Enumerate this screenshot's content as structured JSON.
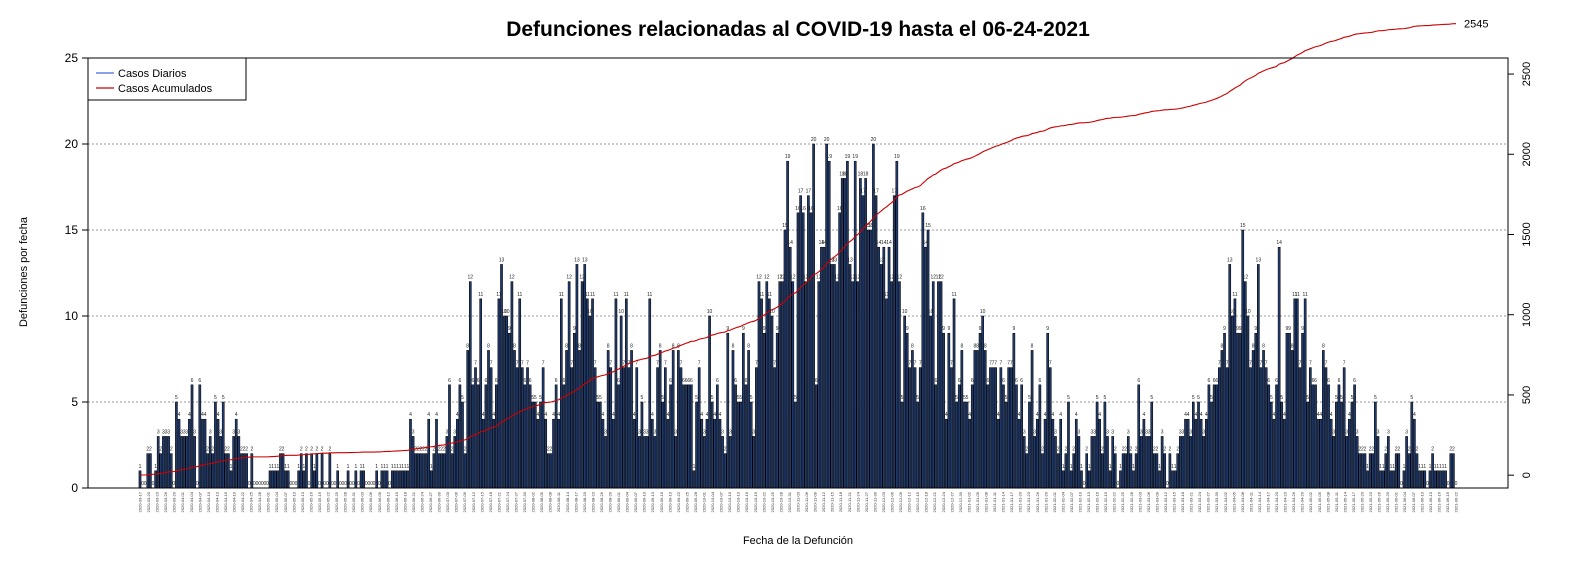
{
  "chart_data": {
    "type": "bar",
    "title": "Defunciones relacionadas al COVID-19 hasta el 06-24-2021",
    "xlabel": "Fecha de la Defunción",
    "ylabel": "Defunciones por fecha",
    "ylim": [
      0,
      25
    ],
    "y_ticks": [
      0,
      5,
      10,
      15,
      20,
      25
    ],
    "y2lim": [
      -80,
      2600
    ],
    "y2_ticks": [
      0,
      500,
      1000,
      1500,
      2000,
      2500
    ],
    "grid": "horizontal dotted",
    "legend_position": "top-left",
    "series": [
      {
        "name": "Casos Diarios",
        "color": "#4169e1",
        "bar_fill": "#20396b"
      },
      {
        "name": "Casos Acumulados",
        "color": "#cc0000"
      }
    ],
    "x_date_labels": [
      "2020-03-17",
      "2020-03-20",
      "2020-03-23",
      "2020-03-26",
      "2020-03-29",
      "2020-04-01",
      "2020-04-04",
      "2020-04-07",
      "2020-04-10",
      "2020-04-13",
      "2020-04-16",
      "2020-04-19",
      "2020-04-22",
      "2020-04-25",
      "2020-04-28",
      "2020-05-01",
      "2020-05-04",
      "2020-05-07",
      "2020-05-10",
      "2020-05-13",
      "2020-05-16",
      "2020-05-19",
      "2020-05-22",
      "2020-05-25",
      "2020-05-28",
      "2020-05-31",
      "2020-06-03",
      "2020-06-06",
      "2020-06-09",
      "2020-06-12",
      "2020-06-15",
      "2020-06-18",
      "2020-06-21",
      "2020-06-24",
      "2020-06-27",
      "2020-06-30",
      "2020-07-03",
      "2020-07-06",
      "2020-07-09",
      "2020-07-12",
      "2020-07-15",
      "2020-07-18",
      "2020-07-21",
      "2020-07-24",
      "2020-07-27",
      "2020-07-30",
      "2020-08-02",
      "2020-08-05",
      "2020-08-08",
      "2020-08-11",
      "2020-08-14",
      "2020-08-17",
      "2020-08-20",
      "2020-08-23",
      "2020-08-26",
      "2020-08-29",
      "2020-09-01",
      "2020-09-04",
      "2020-09-07",
      "2020-09-10",
      "2020-09-13",
      "2020-09-16",
      "2020-09-19",
      "2020-09-22",
      "2020-09-25",
      "2020-09-28",
      "2020-10-01",
      "2020-10-04",
      "2020-10-07",
      "2020-10-10",
      "2020-10-13",
      "2020-10-16",
      "2020-10-19",
      "2020-10-22",
      "2020-10-25",
      "2020-10-28",
      "2020-10-31",
      "2020-11-03",
      "2020-11-06",
      "2020-11-09",
      "2020-11-12",
      "2020-11-15",
      "2020-11-18",
      "2020-11-21",
      "2020-11-24",
      "2020-11-27",
      "2020-11-30",
      "2020-12-03",
      "2020-12-06",
      "2020-12-09",
      "2020-12-12",
      "2020-12-15",
      "2020-12-18",
      "2020-12-21",
      "2020-12-24",
      "2020-12-27",
      "2020-12-30",
      "2021-01-02",
      "2021-01-05",
      "2021-01-08",
      "2021-01-11",
      "2021-01-14",
      "2021-01-17",
      "2021-01-20",
      "2021-01-23",
      "2021-01-26",
      "2021-01-29",
      "2021-02-01",
      "2021-02-04",
      "2021-02-07",
      "2021-02-10",
      "2021-02-13",
      "2021-02-16",
      "2021-02-19",
      "2021-02-22",
      "2021-02-25",
      "2021-02-28",
      "2021-03-03",
      "2021-03-06",
      "2021-03-09",
      "2021-03-12",
      "2021-03-15",
      "2021-03-18",
      "2021-03-21",
      "2021-03-24",
      "2021-03-27",
      "2021-03-30",
      "2021-04-02",
      "2021-04-05",
      "2021-04-08",
      "2021-04-11",
      "2021-04-14",
      "2021-04-17",
      "2021-04-20",
      "2021-04-23",
      "2021-04-26",
      "2021-04-29",
      "2021-05-02",
      "2021-05-05",
      "2021-05-08",
      "2021-05-11",
      "2021-05-14",
      "2021-05-17",
      "2021-05-20",
      "2021-05-23",
      "2021-05-26",
      "2021-05-29",
      "2021-06-01",
      "2021-06-04",
      "2021-06-07",
      "2021-06-10",
      "2021-06-13",
      "2021-06-16",
      "2021-06-19",
      "2021-06-22"
    ],
    "daily_values": [
      1,
      0,
      0,
      2,
      2,
      0,
      1,
      3,
      2,
      3,
      3,
      3,
      2,
      0,
      5,
      4,
      3,
      3,
      3,
      4,
      6,
      3,
      0,
      6,
      4,
      4,
      2,
      3,
      2,
      5,
      4,
      3,
      5,
      2,
      2,
      1,
      3,
      4,
      3,
      2,
      2,
      2,
      0,
      2,
      0,
      0,
      0,
      0,
      0,
      0,
      1,
      1,
      1,
      1,
      2,
      2,
      1,
      1,
      0,
      0,
      0,
      1,
      2,
      1,
      2,
      0,
      2,
      1,
      2,
      0,
      2,
      0,
      0,
      2,
      0,
      0,
      1,
      0,
      0,
      0,
      1,
      0,
      0,
      1,
      0,
      1,
      1,
      0,
      0,
      0,
      0,
      1,
      0,
      1,
      1,
      1,
      0,
      1,
      1,
      1,
      1,
      1,
      1,
      1,
      4,
      3,
      2,
      2,
      2,
      2,
      2,
      4,
      1,
      2,
      4,
      2,
      2,
      2,
      3,
      6,
      2,
      3,
      4,
      6,
      5,
      2,
      8,
      12,
      6,
      7,
      6,
      11,
      4,
      6,
      8,
      7,
      4,
      6,
      11,
      13,
      10,
      10,
      9,
      12,
      8,
      7,
      11,
      7,
      6,
      7,
      6,
      5,
      5,
      4,
      5,
      7,
      4,
      2,
      2,
      4,
      6,
      4,
      11,
      6,
      8,
      12,
      7,
      9,
      13,
      8,
      12,
      13,
      11,
      10,
      11,
      7,
      5,
      5,
      4,
      3,
      8,
      7,
      4,
      11,
      6,
      10,
      7,
      11,
      7,
      8,
      4,
      7,
      3,
      5,
      3,
      3,
      11,
      4,
      3,
      7,
      8,
      5,
      7,
      4,
      6,
      8,
      3,
      8,
      7,
      6,
      6,
      6,
      6,
      1,
      5,
      7,
      4,
      3,
      4,
      10,
      5,
      4,
      6,
      4,
      3,
      2,
      9,
      3,
      8,
      6,
      5,
      5,
      9,
      6,
      8,
      5,
      3,
      7,
      12,
      11,
      9,
      12,
      11,
      10,
      7,
      9,
      12,
      12,
      15,
      19,
      14,
      12,
      5,
      16,
      17,
      16,
      12,
      17,
      16,
      20,
      6,
      12,
      14,
      14,
      20,
      19,
      13,
      13,
      12,
      16,
      18,
      18,
      19,
      13,
      12,
      19,
      12,
      18,
      17,
      18,
      15,
      15,
      20,
      17,
      14,
      13,
      14,
      11,
      14,
      12,
      17,
      19,
      12,
      5,
      10,
      9,
      7,
      8,
      7,
      5,
      7,
      16,
      14,
      15,
      10,
      12,
      6,
      12,
      12,
      9,
      4,
      9,
      7,
      11,
      5,
      6,
      8,
      5,
      5,
      4,
      6,
      8,
      8,
      9,
      10,
      8,
      6,
      7,
      7,
      7,
      4,
      7,
      6,
      5,
      7,
      7,
      9,
      6,
      4,
      6,
      3,
      2,
      5,
      8,
      3,
      4,
      6,
      2,
      4,
      9,
      7,
      4,
      3,
      2,
      4,
      1,
      2,
      5,
      1,
      2,
      4,
      3,
      1,
      0,
      2,
      1,
      3,
      3,
      5,
      4,
      2,
      5,
      3,
      1,
      3,
      2,
      0,
      1,
      2,
      2,
      3,
      2,
      1,
      2,
      6,
      3,
      4,
      3,
      3,
      5,
      2,
      2,
      1,
      3,
      2,
      0,
      2,
      1,
      1,
      2,
      3,
      3,
      4,
      4,
      3,
      5,
      4,
      5,
      4,
      3,
      4,
      6,
      5,
      6,
      6,
      7,
      8,
      9,
      7,
      13,
      10,
      11,
      9,
      9,
      15,
      12,
      10,
      7,
      8,
      9,
      13,
      7,
      8,
      7,
      6,
      5,
      4,
      6,
      14,
      5,
      4,
      9,
      9,
      8,
      11,
      11,
      7,
      9,
      11,
      5,
      7,
      6,
      6,
      4,
      4,
      8,
      7,
      6,
      4,
      3,
      5,
      6,
      5,
      7,
      3,
      4,
      5,
      6,
      3,
      2,
      2,
      2,
      1,
      2,
      2,
      5,
      3,
      1,
      1,
      2,
      3,
      1,
      1,
      2,
      2,
      0,
      1,
      3,
      2,
      5,
      4,
      2,
      1,
      1,
      1,
      0,
      1,
      2,
      1,
      1,
      1,
      1,
      1,
      0,
      2,
      2,
      0
    ],
    "cumulative_end_label": "2545",
    "bar_value_labels_shown": true
  }
}
